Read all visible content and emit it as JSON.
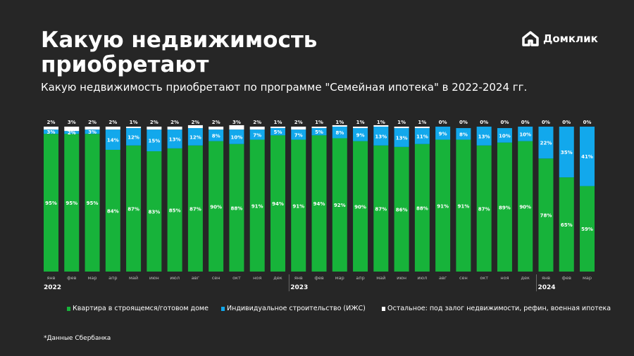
{
  "header": {
    "title": "Какую недвижимость приобретают",
    "subtitle": "Какую недвижимость приобретают по программе \"Семейная ипотека\" в 2022-2024 гг.",
    "logo": "Домклик"
  },
  "footnote": "*Данные Сбербанка",
  "chart_data": {
    "type": "bar",
    "stacked": true,
    "ylim": [
      0,
      100
    ],
    "grid": false,
    "legend_position": "bottom",
    "categories": [
      "янв",
      "фев",
      "мар",
      "апр",
      "май",
      "июн",
      "июл",
      "авг",
      "сен",
      "окт",
      "ноя",
      "дек",
      "янв",
      "фев",
      "мар",
      "апр",
      "май",
      "июн",
      "июл",
      "авг",
      "сен",
      "окт",
      "ноя",
      "дек",
      "янв",
      "фев",
      "мар"
    ],
    "years": [
      {
        "label": "2022",
        "start_index": 0
      },
      {
        "label": "2023",
        "start_index": 12
      },
      {
        "label": "2024",
        "start_index": 24
      }
    ],
    "series": [
      {
        "name": "Квартира в строящемся/готовом доме",
        "color": "#17b33a",
        "values": [
          95,
          95,
          95,
          84,
          87,
          83,
          85,
          87,
          90,
          88,
          91,
          94,
          91,
          94,
          92,
          90,
          87,
          86,
          88,
          91,
          91,
          87,
          89,
          90,
          78,
          65,
          59
        ]
      },
      {
        "name": "Индивидуальное строительство (ИЖС)",
        "color": "#12a8ec",
        "values": [
          3,
          2,
          3,
          14,
          12,
          15,
          13,
          12,
          8,
          10,
          7,
          5,
          7,
          5,
          8,
          9,
          13,
          13,
          11,
          9,
          8,
          13,
          10,
          10,
          22,
          35,
          41
        ]
      },
      {
        "name": "Остальное: под залог недвижимости, рефин, военная ипотека",
        "color": "#ffffff",
        "values": [
          2,
          3,
          2,
          2,
          1,
          2,
          2,
          2,
          2,
          3,
          2,
          1,
          2,
          1,
          1,
          1,
          1,
          1,
          1,
          0,
          0,
          0,
          0,
          0,
          0,
          0,
          0
        ]
      }
    ]
  }
}
